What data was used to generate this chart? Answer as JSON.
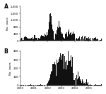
{
  "panel_A_label": "A",
  "panel_B_label": "B",
  "ylabel": "No. cases",
  "x_tick_labels": [
    "2000",
    "2001",
    "2002",
    "2003",
    "2004",
    "2005"
  ],
  "panel_A_ylim": [
    0,
    2000
  ],
  "panel_A_yticks": [
    0,
    400,
    800,
    1200,
    1600,
    2000
  ],
  "panel_A_yticklabels": [
    "0",
    "400",
    "800",
    "1,200",
    "1,600",
    "2,000"
  ],
  "panel_B_ylim": [
    0,
    400
  ],
  "panel_B_yticks": [
    0,
    100,
    200,
    300,
    400
  ],
  "panel_B_yticklabels": [
    "0",
    "100",
    "200",
    "300",
    "400"
  ],
  "n_weeks": 313,
  "bar_color": "#111111",
  "x_start_year": 2000,
  "x_end_year": 2006,
  "weeks_per_year": 52.18
}
